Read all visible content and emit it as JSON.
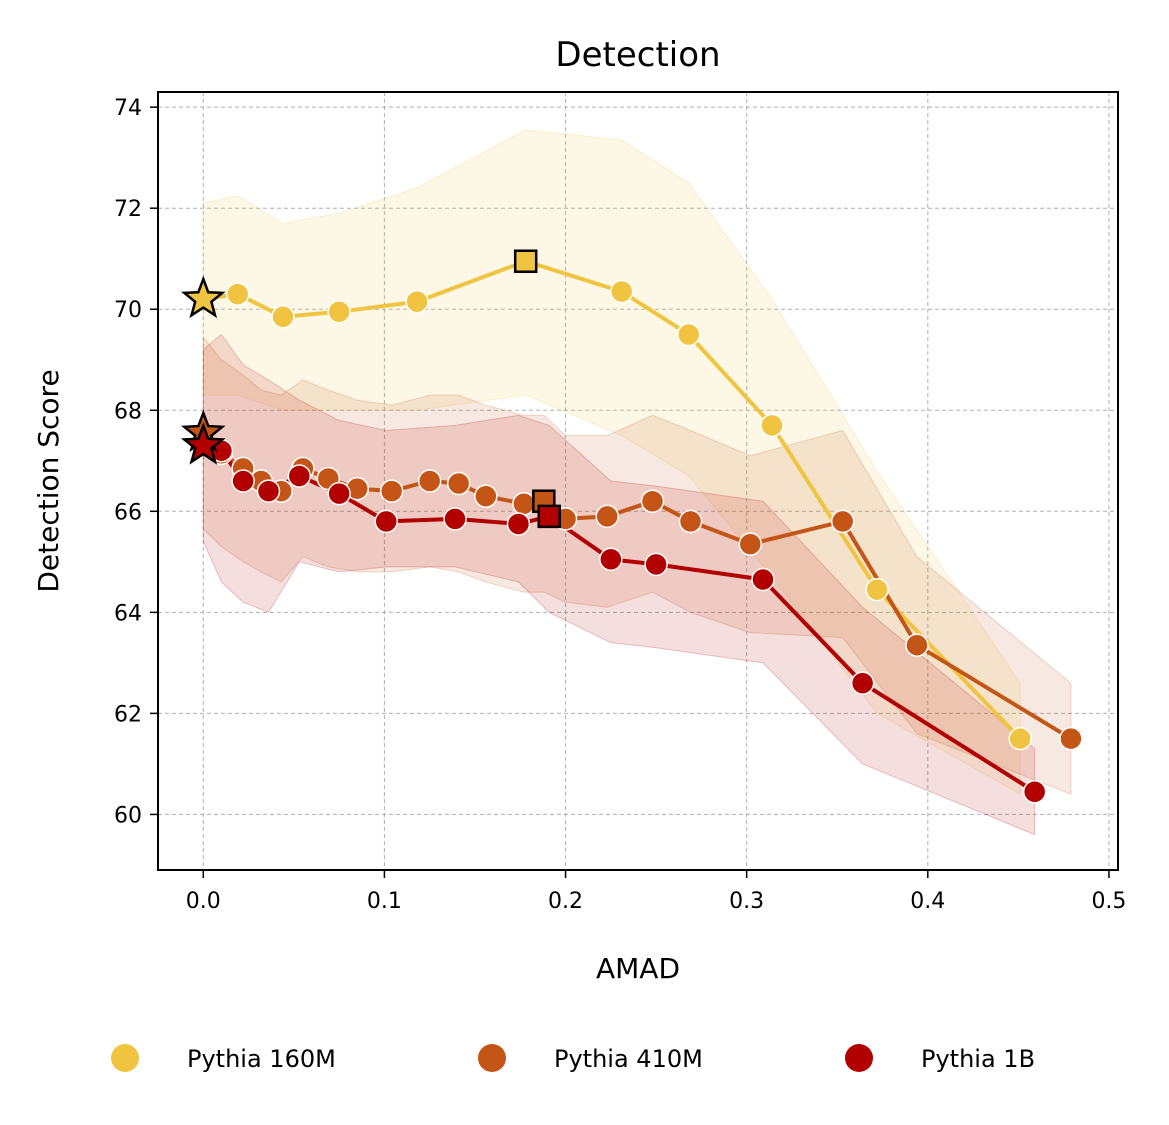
{
  "chart_data": {
    "type": "line",
    "title": "Detection",
    "xlabel": "AMAD",
    "ylabel": "Detection Score",
    "xlim": [
      -0.025,
      0.505
    ],
    "ylim": [
      58.9,
      74.3
    ],
    "xticks": [
      0.0,
      0.1,
      0.2,
      0.3,
      0.4,
      0.5
    ],
    "xtick_labels": [
      "0.0",
      "0.1",
      "0.2",
      "0.3",
      "0.4",
      "0.5"
    ],
    "yticks": [
      60,
      62,
      64,
      66,
      68,
      70,
      72,
      74
    ],
    "ytick_labels": [
      "60",
      "62",
      "64",
      "66",
      "68",
      "70",
      "72",
      "74"
    ],
    "grid": true,
    "legend_position": "bottom",
    "series": [
      {
        "name": "Pythia 160M",
        "color": "#F0C441",
        "x": [
          0.019,
          0.044,
          0.075,
          0.118,
          0.178,
          0.231,
          0.268,
          0.314,
          0.372,
          0.451
        ],
        "y": [
          70.3,
          69.85,
          69.95,
          70.15,
          70.95,
          70.35,
          69.5,
          67.7,
          64.45,
          61.5
        ],
        "lower": [
          68.3,
          68.0,
          68.0,
          68.0,
          68.3,
          67.5,
          66.7,
          64.7,
          62.0,
          60.4
        ],
        "upper": [
          72.25,
          71.7,
          71.9,
          72.4,
          73.55,
          73.35,
          72.5,
          70.2,
          66.8,
          62.6
        ],
        "star": {
          "x": 0.0,
          "y": 70.2
        },
        "square": {
          "x": 0.178,
          "y": 70.95
        }
      },
      {
        "name": "Pythia 410M",
        "color": "#C45517",
        "x": [
          0.01,
          0.022,
          0.032,
          0.043,
          0.055,
          0.069,
          0.085,
          0.104,
          0.125,
          0.141,
          0.156,
          0.177,
          0.188,
          0.2,
          0.223,
          0.248,
          0.269,
          0.302,
          0.353,
          0.394,
          0.479
        ],
        "y": [
          67.15,
          66.85,
          66.6,
          66.4,
          66.85,
          66.65,
          66.45,
          66.4,
          66.6,
          66.55,
          66.3,
          66.15,
          66.2,
          65.85,
          65.9,
          66.2,
          65.8,
          65.35,
          65.8,
          63.35,
          61.5
        ],
        "lower": [
          65.3,
          65.0,
          64.8,
          64.6,
          65.1,
          64.9,
          64.8,
          64.8,
          64.9,
          64.8,
          64.6,
          64.4,
          64.4,
          64.2,
          64.1,
          64.4,
          64.0,
          63.6,
          63.5,
          61.6,
          60.4
        ],
        "upper": [
          69.0,
          68.7,
          68.4,
          68.3,
          68.6,
          68.4,
          68.2,
          68.1,
          68.3,
          68.3,
          68.1,
          67.9,
          67.9,
          67.5,
          67.5,
          67.9,
          67.6,
          67.1,
          67.6,
          65.1,
          62.6
        ],
        "star": {
          "x": 0.0,
          "y": 67.55
        },
        "square": {
          "x": 0.188,
          "y": 66.2
        }
      },
      {
        "name": "Pythia 1B",
        "color": "#B20000",
        "x": [
          0.01,
          0.022,
          0.036,
          0.053,
          0.075,
          0.101,
          0.139,
          0.174,
          0.191,
          0.225,
          0.25,
          0.309,
          0.364,
          0.459
        ],
        "y": [
          67.2,
          66.6,
          66.4,
          66.7,
          66.35,
          65.8,
          65.85,
          65.75,
          65.9,
          65.05,
          64.95,
          64.65,
          62.6,
          60.45
        ],
        "lower": [
          64.6,
          64.2,
          64.0,
          65.0,
          64.8,
          64.9,
          64.9,
          64.6,
          64.0,
          63.4,
          63.3,
          63.0,
          61.0,
          59.6
        ],
        "upper": [
          69.5,
          68.9,
          68.6,
          68.2,
          67.8,
          67.6,
          67.7,
          67.9,
          67.7,
          66.6,
          66.5,
          66.2,
          64.1,
          61.3
        ],
        "star": {
          "x": 0.0,
          "y": 67.3
        },
        "square": {
          "x": 0.191,
          "y": 65.9
        }
      }
    ]
  }
}
